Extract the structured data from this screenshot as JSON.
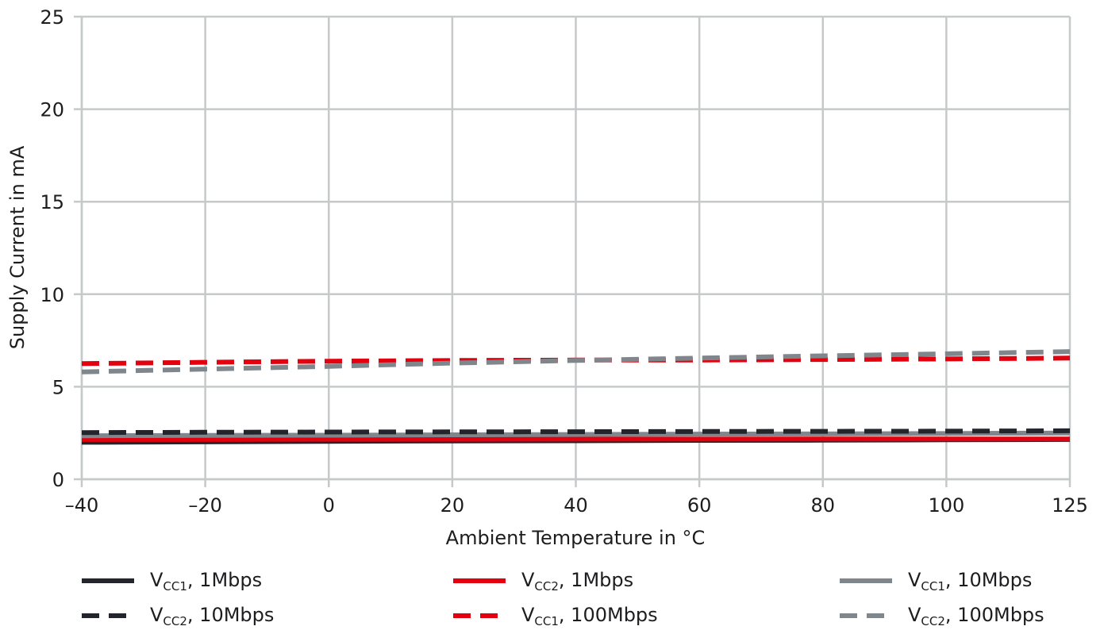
{
  "chart_data": {
    "type": "line",
    "title": "",
    "xlabel": "Ambient Temperature in °C",
    "ylabel": "Supply Current in mA",
    "x_ticks": [
      -40,
      -20,
      0,
      20,
      40,
      60,
      80,
      100,
      125
    ],
    "y_ticks": [
      0,
      5,
      10,
      15,
      20,
      25
    ],
    "ylim": [
      0,
      25
    ],
    "grid": true,
    "legend_placement": "bottom",
    "x": [
      -40,
      -20,
      0,
      20,
      40,
      60,
      80,
      100,
      125
    ],
    "series": [
      {
        "name_main": "V",
        "name_sub": "CC1",
        "name_rest": ", 1Mbps",
        "color": "#22252b",
        "dashed": false,
        "values": [
          2.0,
          2.02,
          2.05,
          2.07,
          2.08,
          2.1,
          2.11,
          2.13,
          2.15
        ]
      },
      {
        "name_main": "V",
        "name_sub": "CC2",
        "name_rest": ", 1Mbps",
        "color": "#e3000f",
        "dashed": false,
        "values": [
          2.15,
          2.15,
          2.16,
          2.16,
          2.17,
          2.17,
          2.18,
          2.18,
          2.18
        ]
      },
      {
        "name_main": "V",
        "name_sub": "CC1",
        "name_rest": ", 10Mbps",
        "color": "#7f878d",
        "dashed": false,
        "values": [
          2.35,
          2.37,
          2.38,
          2.4,
          2.42,
          2.44,
          2.45,
          2.47,
          2.5
        ]
      },
      {
        "name_main": "V",
        "name_sub": "CC2",
        "name_rest": ", 10Mbps",
        "color": "#22252b",
        "dashed": true,
        "values": [
          2.52,
          2.54,
          2.55,
          2.56,
          2.57,
          2.58,
          2.59,
          2.6,
          2.62
        ]
      },
      {
        "name_main": "V",
        "name_sub": "CC1",
        "name_rest": ", 100Mbps",
        "color": "#e3000f",
        "dashed": true,
        "values": [
          6.25,
          6.32,
          6.38,
          6.42,
          6.44,
          6.44,
          6.47,
          6.5,
          6.55
        ]
      },
      {
        "name_main": "V",
        "name_sub": "CC2",
        "name_rest": ", 100Mbps",
        "color": "#7f878d",
        "dashed": true,
        "values": [
          5.8,
          5.95,
          6.1,
          6.28,
          6.42,
          6.55,
          6.67,
          6.78,
          6.9
        ]
      }
    ]
  }
}
